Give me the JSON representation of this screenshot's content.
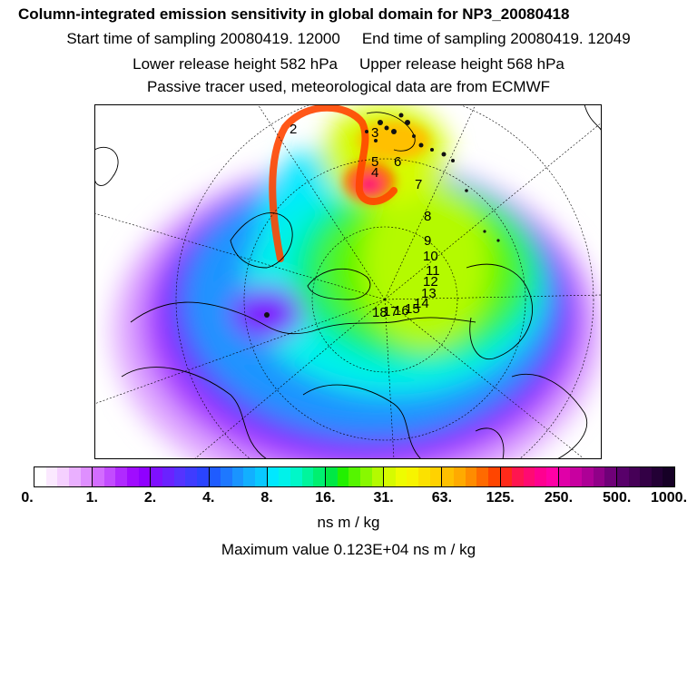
{
  "header": {
    "title": "Column-integrated emission sensitivity in global domain for NP3_20080418",
    "start_label": "Start time of sampling 20080419. 12000",
    "end_label": "End time of sampling 20080419. 12049",
    "lower_label": "Lower release height  582 hPa",
    "upper_label": "Upper release height  568 hPa",
    "note": "Passive tracer used, meteorological data are from ECMWF"
  },
  "map": {
    "trajectory_labels": [
      "2",
      "3",
      "4",
      "5",
      "6",
      "7",
      "8",
      "9",
      "10",
      "11",
      "12",
      "13",
      "14",
      "15",
      "16",
      "17",
      "18"
    ],
    "colors": {
      "high": "#ff1493",
      "track": "#ff4500"
    }
  },
  "colorbar": {
    "ticks": [
      "0.",
      "1.",
      "2.",
      "4.",
      "8.",
      "16.",
      "31.",
      "63.",
      "125.",
      "250.",
      "500.",
      "1000."
    ],
    "segments": [
      [
        "#ffffff",
        "#fbe9ff",
        "#f5d0ff",
        "#eab0ff",
        "#df8fff"
      ],
      [
        "#d36cff",
        "#c24cff",
        "#b02aff",
        "#a00cff",
        "#9000ff"
      ],
      [
        "#7f10ff",
        "#6a22ff",
        "#5533ff",
        "#3f3cff",
        "#2a44ff"
      ],
      [
        "#1f5cff",
        "#1e78ff",
        "#1a94ff",
        "#12afff",
        "#09c8ff"
      ],
      [
        "#00e8ff",
        "#00f2ea",
        "#00f7c8",
        "#00f59c",
        "#00f070"
      ],
      [
        "#00e845",
        "#22f000",
        "#55f500",
        "#88f800",
        "#b4fa00"
      ],
      [
        "#d6fb00",
        "#eefc00",
        "#f7f400",
        "#fbe100",
        "#ffd200"
      ],
      [
        "#ffc000",
        "#ffaa00",
        "#ff8c00",
        "#ff6a00",
        "#ff4500"
      ],
      [
        "#ff2a1a",
        "#ff1550",
        "#ff0a72",
        "#ff0090",
        "#ff00a6"
      ],
      [
        "#e000a8",
        "#c800a0",
        "#ad0096",
        "#900088",
        "#6f0078"
      ],
      [
        "#58006a",
        "#460057",
        "#330045",
        "#230035",
        "#160026"
      ]
    ]
  },
  "unit_label": "ns m / kg",
  "max_label": "Maximum value  0.123E+04 ns m / kg"
}
